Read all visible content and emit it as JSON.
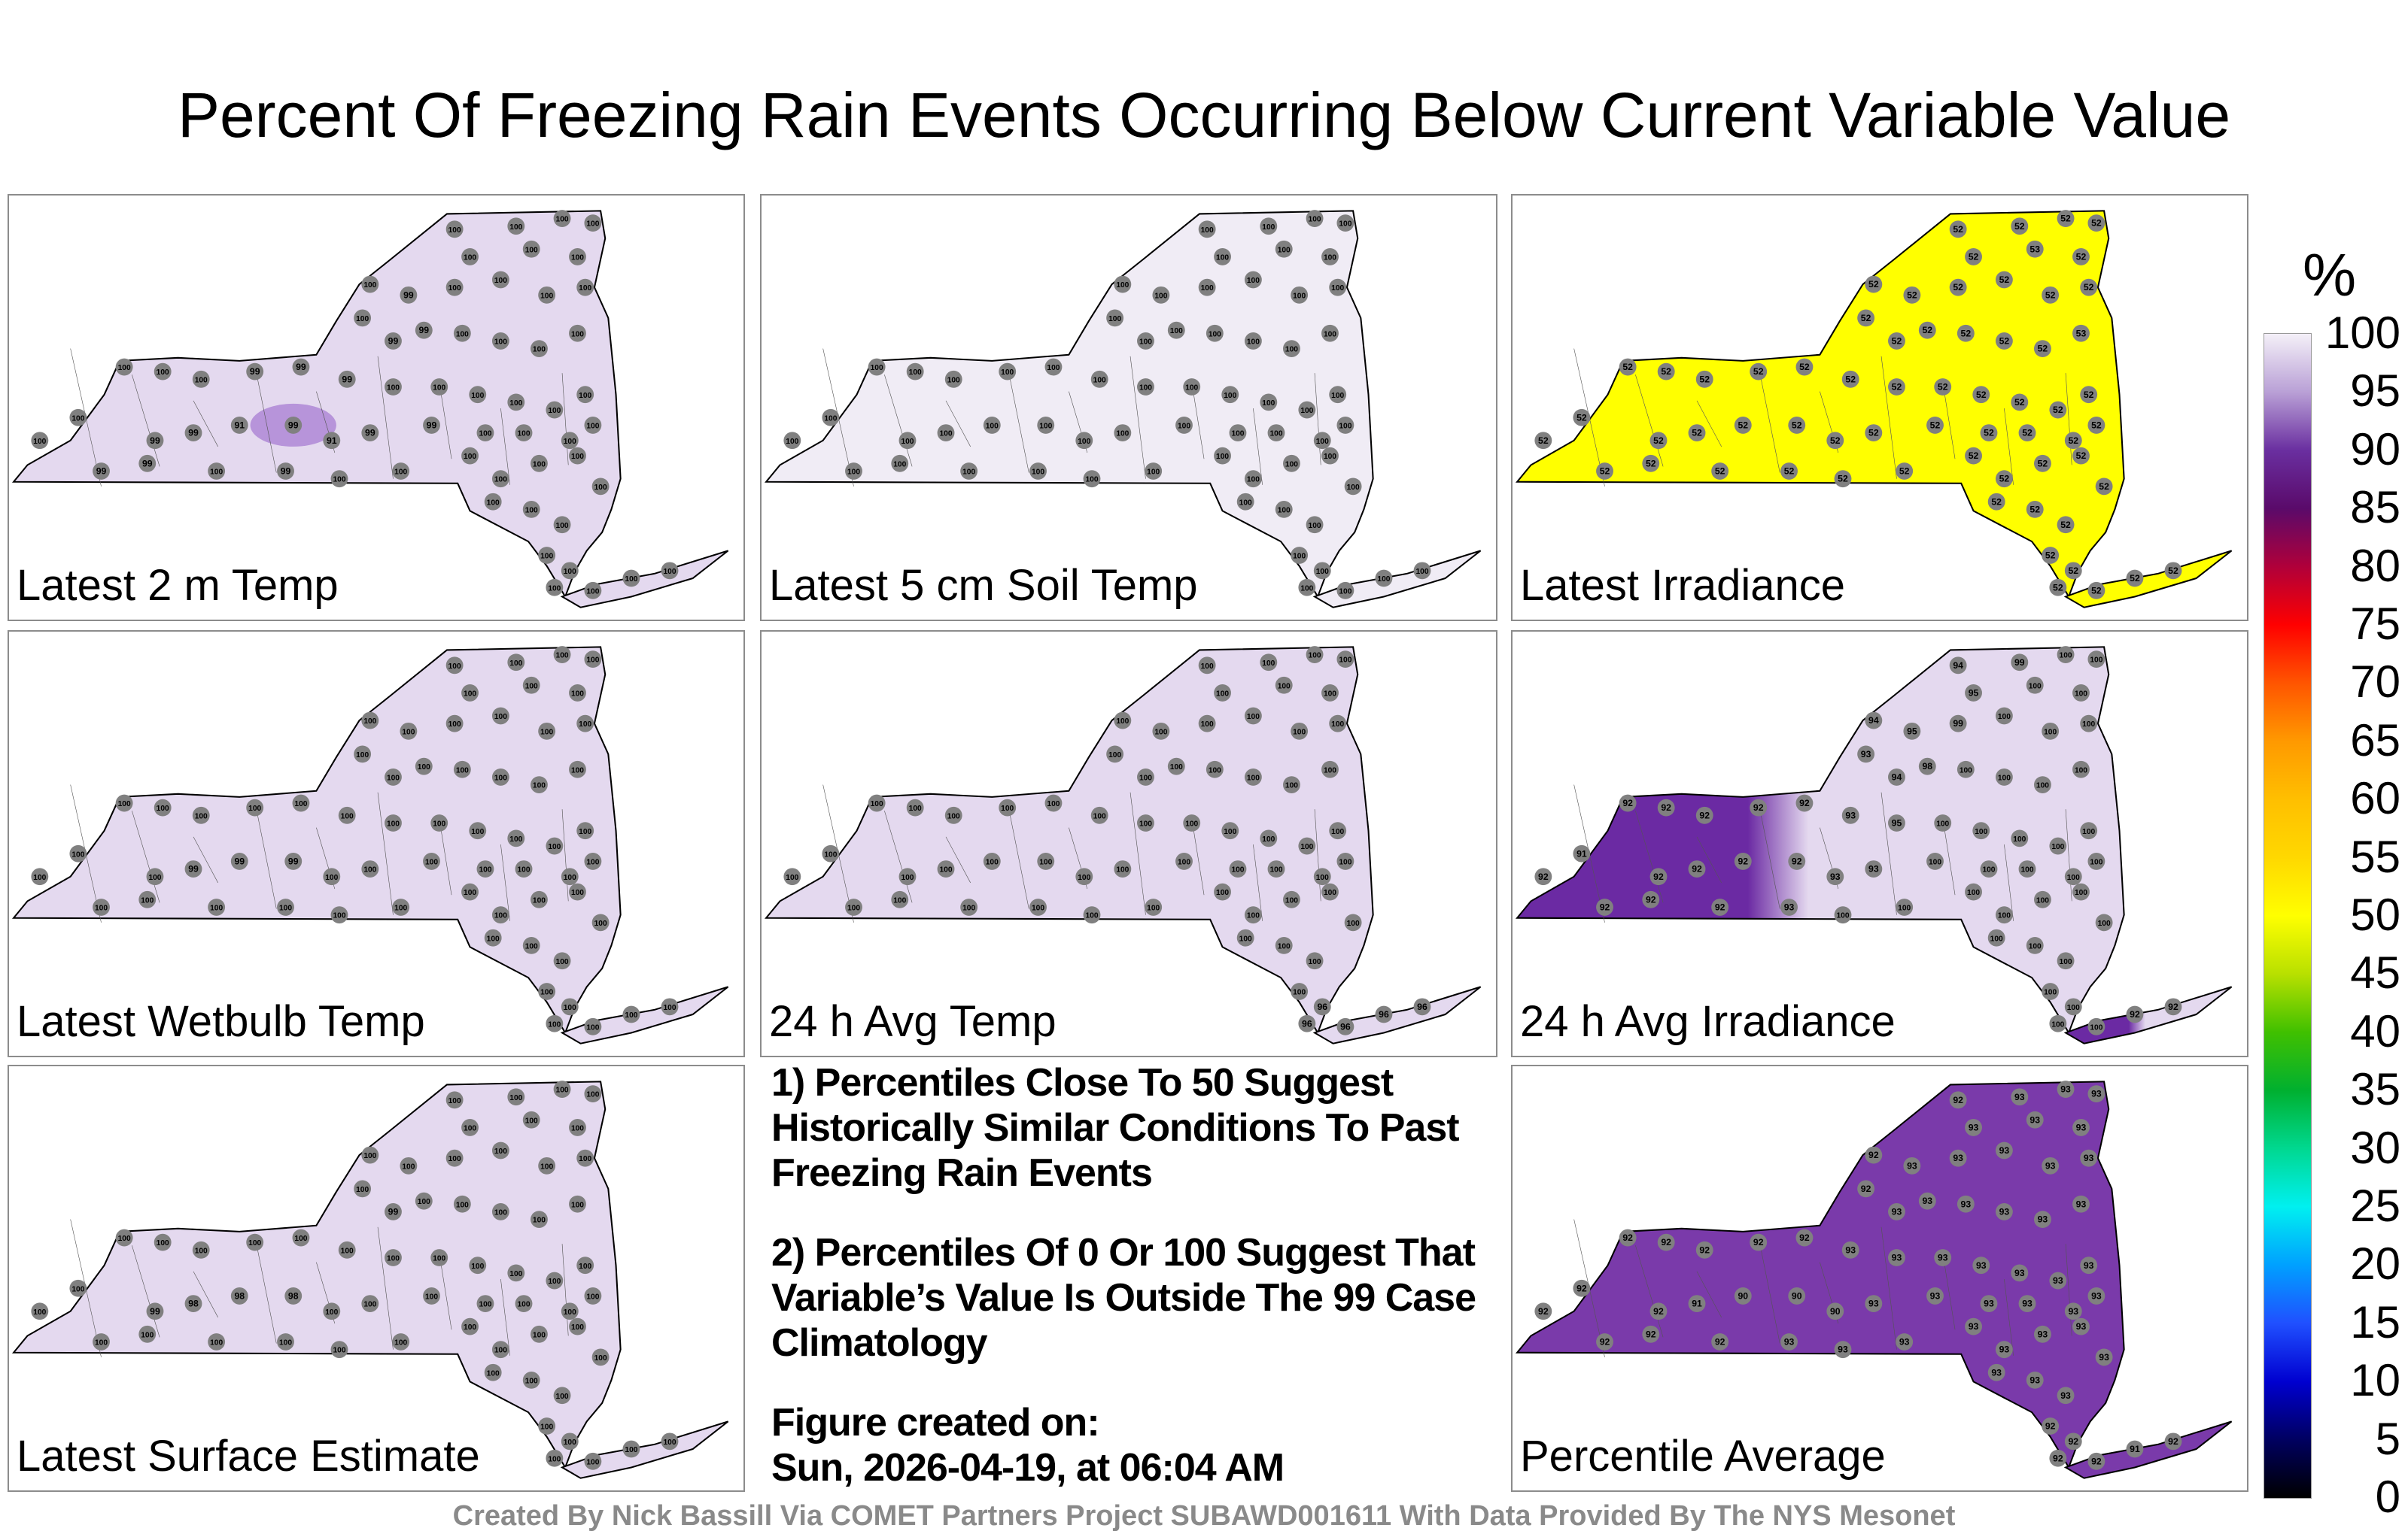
{
  "title": "Percent Of Freezing Rain Events Occurring Below Current Variable Value",
  "panels": [
    {
      "label": "Latest 2 m Temp",
      "fill": "#e4d9ef",
      "blob": "#9966cc",
      "values": [
        100,
        99,
        99,
        100,
        99,
        100,
        100,
        100,
        99,
        99,
        91,
        99,
        91,
        99,
        99,
        100,
        100,
        100,
        100,
        100,
        100,
        100,
        99,
        99,
        99,
        100,
        100,
        100,
        100,
        100,
        100,
        100,
        99,
        99,
        100,
        100,
        100,
        100,
        100,
        99,
        100,
        100,
        100,
        100,
        100,
        100,
        100,
        100,
        100,
        100,
        100,
        100,
        100,
        100,
        100,
        100,
        100,
        100,
        100,
        100,
        100,
        100,
        100,
        100,
        100
      ]
    },
    {
      "label": "Latest 5 cm Soil Temp",
      "fill": "#f0ecf5",
      "blob": null,
      "values": [
        100,
        100,
        100,
        100,
        100,
        100,
        100,
        100,
        100,
        100,
        100,
        100,
        100,
        100,
        100,
        100,
        100,
        100,
        100,
        100,
        100,
        100,
        100,
        100,
        100,
        100,
        100,
        100,
        100,
        100,
        100,
        100,
        100,
        100,
        100,
        100,
        100,
        100,
        100,
        100,
        100,
        100,
        100,
        100,
        100,
        100,
        100,
        100,
        100,
        100,
        100,
        100,
        100,
        100,
        100,
        100,
        100,
        100,
        100,
        100,
        100,
        100,
        100,
        100,
        100
      ]
    },
    {
      "label": "Latest Irradiance",
      "fill": "#ffff00",
      "blob": null,
      "values": [
        52,
        52,
        52,
        52,
        52,
        52,
        52,
        52,
        52,
        52,
        52,
        52,
        52,
        52,
        52,
        52,
        52,
        52,
        52,
        52,
        52,
        52,
        52,
        52,
        52,
        52,
        52,
        52,
        52,
        52,
        52,
        52,
        52,
        52,
        52,
        52,
        52,
        53,
        52,
        52,
        52,
        52,
        52,
        52,
        52,
        52,
        52,
        52,
        52,
        53,
        52,
        52,
        52,
        52,
        52,
        52,
        52,
        52,
        52,
        52,
        52,
        52,
        52,
        52,
        52
      ]
    },
    {
      "label": "Latest Wetbulb Temp",
      "fill": "#e4d9ef",
      "blob": null,
      "values": [
        100,
        100,
        100,
        100,
        100,
        100,
        100,
        100,
        100,
        99,
        99,
        99,
        100,
        100,
        100,
        100,
        100,
        100,
        100,
        100,
        100,
        100,
        100,
        100,
        100,
        100,
        100,
        100,
        100,
        100,
        100,
        100,
        100,
        100,
        100,
        100,
        100,
        100,
        100,
        100,
        100,
        100,
        100,
        100,
        100,
        100,
        100,
        100,
        100,
        100,
        100,
        100,
        100,
        100,
        100,
        100,
        100,
        100,
        100,
        100,
        100,
        100,
        100,
        100,
        100
      ]
    },
    {
      "label": "24 h Avg Temp",
      "fill": "#e4d9ef",
      "blob": null,
      "values": [
        100,
        100,
        100,
        100,
        100,
        100,
        100,
        100,
        100,
        100,
        100,
        100,
        100,
        100,
        100,
        100,
        100,
        100,
        100,
        100,
        100,
        100,
        100,
        100,
        100,
        100,
        100,
        100,
        100,
        100,
        100,
        100,
        100,
        100,
        100,
        100,
        100,
        100,
        100,
        100,
        100,
        100,
        100,
        100,
        100,
        100,
        100,
        100,
        100,
        100,
        100,
        100,
        100,
        100,
        100,
        100,
        100,
        100,
        100,
        100,
        96,
        96,
        96,
        96,
        96
      ]
    },
    {
      "label": "24 h Avg Irradiance",
      "fill": "#e4d9ef",
      "west": "#6b2aa3",
      "values": [
        92,
        92,
        92,
        92,
        93,
        100,
        100,
        91,
        92,
        92,
        92,
        92,
        93,
        93,
        100,
        100,
        100,
        100,
        100,
        92,
        92,
        92,
        92,
        92,
        93,
        95,
        100,
        100,
        100,
        100,
        100,
        93,
        94,
        98,
        100,
        100,
        100,
        100,
        94,
        95,
        99,
        100,
        100,
        100,
        94,
        99,
        100,
        100,
        95,
        100,
        100,
        100,
        100,
        100,
        100,
        100,
        100,
        100,
        100,
        100,
        100,
        100,
        100,
        92,
        92
      ]
    },
    {
      "label": "Latest Surface Estimate",
      "fill": "#e4d9ef",
      "blob": null,
      "values": [
        100,
        100,
        100,
        100,
        100,
        100,
        100,
        100,
        99,
        98,
        98,
        98,
        100,
        100,
        100,
        100,
        100,
        100,
        100,
        100,
        100,
        100,
        100,
        100,
        100,
        100,
        100,
        100,
        100,
        100,
        100,
        100,
        99,
        100,
        100,
        100,
        100,
        100,
        100,
        100,
        100,
        100,
        100,
        100,
        100,
        100,
        100,
        100,
        100,
        100,
        100,
        100,
        100,
        100,
        100,
        100,
        100,
        100,
        100,
        100,
        100,
        100,
        100,
        100,
        100
      ]
    },
    {
      "label": "Percentile Average",
      "fill": "#7a3aaa",
      "blob": null,
      "values": [
        92,
        92,
        92,
        92,
        93,
        93,
        93,
        92,
        92,
        91,
        90,
        90,
        90,
        93,
        93,
        93,
        93,
        93,
        93,
        92,
        92,
        92,
        92,
        92,
        93,
        93,
        93,
        93,
        93,
        93,
        93,
        92,
        93,
        93,
        93,
        93,
        93,
        93,
        92,
        93,
        93,
        93,
        93,
        93,
        92,
        93,
        93,
        93,
        93,
        93,
        93,
        93,
        93,
        93,
        93,
        93,
        93,
        93,
        93,
        92,
        92,
        92,
        92,
        91,
        92
      ]
    }
  ],
  "notes": {
    "note1": "1) Percentiles Close To 50 Suggest Historically Similar Conditions To Past Freezing Rain Events",
    "note2": "2) Percentiles Of 0 Or 100 Suggest That Variable’s Value Is Outside The 99 Case Climatology",
    "created_label": "Figure created on:",
    "created_value": "Sun, 2026-04-19, at 06:04 AM"
  },
  "colorbar": {
    "unit": "%",
    "ticks": [
      "100",
      "95",
      "90",
      "85",
      "80",
      "75",
      "70",
      "65",
      "60",
      "55",
      "50",
      "45",
      "40",
      "35",
      "30",
      "25",
      "20",
      "15",
      "10",
      "5",
      "0"
    ],
    "colors": [
      "#f4f0f8",
      "#b9a0d6",
      "#6a2fa0",
      "#5a0a6a",
      "#b0003a",
      "#ff0000",
      "#ff5500",
      "#ff9900",
      "#ffbf00",
      "#ffd800",
      "#ffff00",
      "#b8e000",
      "#40c000",
      "#00b030",
      "#00d890",
      "#00f0f0",
      "#00a0ff",
      "#2050ff",
      "#0000d0",
      "#000060",
      "#000000"
    ]
  },
  "footer": "Created By Nick Bassill Via COMET Partners Project SUBAWD001611 With Data Provided By The NYS Mesonet"
}
